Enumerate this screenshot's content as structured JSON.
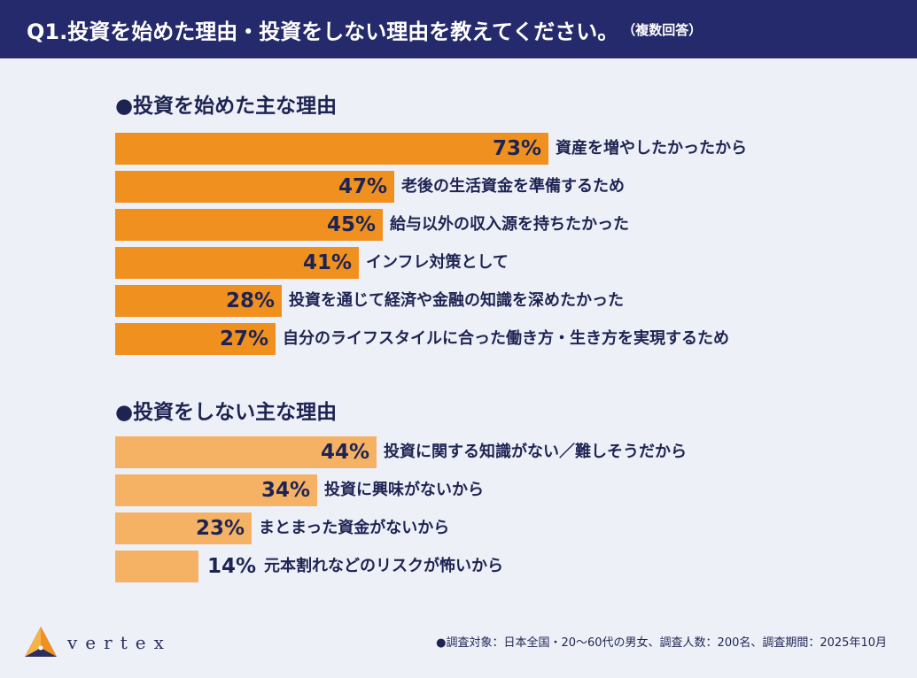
{
  "header": {
    "title": "Q1.投資を始めた理由・投資をしない理由を教えてください。",
    "note": "（複数回答）"
  },
  "colors": {
    "header_bg": "#242a6b",
    "bar_start": "#f0901e",
    "bar_not": "#f5b265",
    "text": "#1e2452"
  },
  "chart_data": [
    {
      "type": "bar",
      "orientation": "horizontal",
      "title": "●投資を始めた主な理由",
      "categories": [
        "資産を増やしたかったから",
        "老後の生活資金を準備するため",
        "給与以外の収入源を持ちたかった",
        "インフレ対策として",
        "投資を通じて経済や金融の知識を深めたかった",
        "自分のライフスタイルに合った働き方・生き方を実現するため"
      ],
      "values": [
        73,
        47,
        45,
        41,
        28,
        27
      ],
      "value_labels": [
        "73%",
        "47%",
        "45%",
        "41%",
        "28%",
        "27%"
      ],
      "unit": "%",
      "color": "#f0901e"
    },
    {
      "type": "bar",
      "orientation": "horizontal",
      "title": "●投資をしない主な理由",
      "categories": [
        "投資に関する知識がない／難しそうだから",
        "投資に興味がないから",
        "まとまった資金がないから",
        "元本割れなどのリスクが怖いから"
      ],
      "values": [
        44,
        34,
        23,
        14
      ],
      "value_labels": [
        "44%",
        "34%",
        "23%",
        "14%"
      ],
      "unit": "%",
      "color": "#f5b265"
    }
  ],
  "footer": {
    "logo_text": "vertex",
    "note": "●調査対象：日本全国・20～60代の男女、調査人数：200名、調査期間：2025年10月"
  }
}
